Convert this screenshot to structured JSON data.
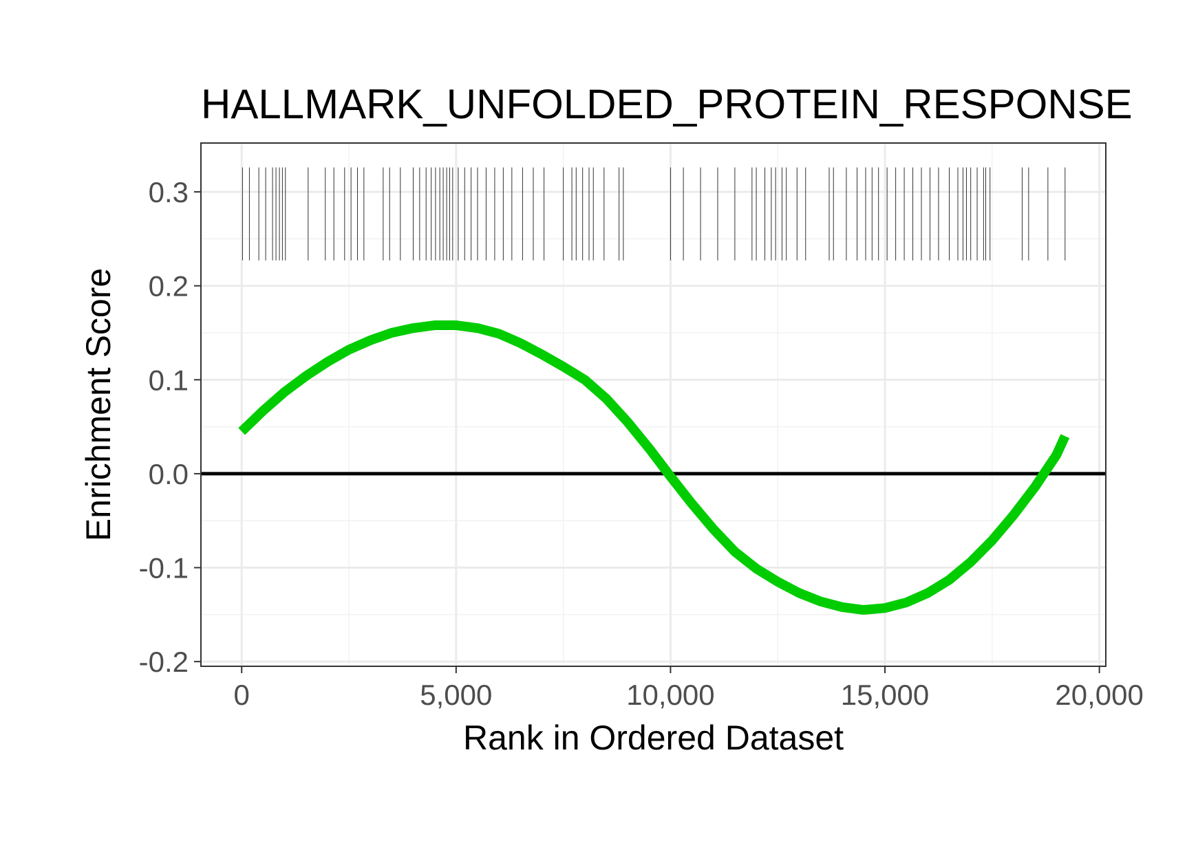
{
  "chart_data": {
    "type": "line",
    "title": "HALLMARK_UNFOLDED_PROTEIN_RESPONSE",
    "xlabel": "Rank in Ordered Dataset",
    "ylabel": "Enrichment Score",
    "xlim": [
      -950,
      20150
    ],
    "ylim": [
      -0.205,
      0.352
    ],
    "x_ticks": [
      0,
      5000,
      10000,
      15000,
      20000
    ],
    "x_tick_labels": [
      "0",
      "5,000",
      "10,000",
      "15,000",
      "20,000"
    ],
    "y_ticks": [
      -0.2,
      -0.1,
      0.0,
      0.1,
      0.2,
      0.3
    ],
    "y_tick_labels": [
      "-0.2",
      "-0.1",
      "0.0",
      "0.1",
      "0.2",
      "0.3"
    ],
    "grid": true,
    "theme": "black-and-white panel",
    "reference_line": {
      "y": 0,
      "color": "#000000"
    },
    "series": [
      {
        "color": "#00cc00",
        "x": [
          0,
          500,
          1000,
          1500,
          2000,
          2500,
          3000,
          3500,
          4000,
          4500,
          5000,
          5500,
          6000,
          6500,
          7000,
          7500,
          8000,
          8500,
          9000,
          9500,
          10000,
          10500,
          11000,
          11500,
          12000,
          12500,
          13000,
          13500,
          14000,
          14500,
          15000,
          15500,
          16000,
          16500,
          17000,
          17500,
          18000,
          18500,
          19000,
          19200
        ],
        "y": [
          0.045,
          0.067,
          0.087,
          0.104,
          0.119,
          0.132,
          0.142,
          0.15,
          0.155,
          0.158,
          0.158,
          0.155,
          0.149,
          0.139,
          0.127,
          0.114,
          0.1,
          0.08,
          0.055,
          0.027,
          -0.003,
          -0.032,
          -0.059,
          -0.083,
          -0.101,
          -0.115,
          -0.127,
          -0.136,
          -0.142,
          -0.145,
          -0.143,
          -0.137,
          -0.127,
          -0.113,
          -0.094,
          -0.071,
          -0.044,
          -0.014,
          0.02,
          0.04
        ]
      }
    ],
    "hit_ranks": [
      20,
      180,
      400,
      560,
      720,
      800,
      880,
      950,
      1020,
      1550,
      1950,
      2150,
      2400,
      2550,
      2700,
      2850,
      3300,
      3450,
      3700,
      4000,
      4150,
      4300,
      4420,
      4520,
      4620,
      4700,
      4780,
      4850,
      4920,
      5050,
      5200,
      5350,
      5500,
      5700,
      5900,
      6100,
      6300,
      6550,
      6800,
      7050,
      7500,
      7700,
      7800,
      7950,
      8100,
      8200,
      8450,
      8800,
      8900,
      10000,
      10300,
      10700,
      11100,
      11500,
      11900,
      12000,
      12200,
      12350,
      12450,
      12600,
      12700,
      12950,
      13150,
      13700,
      13800,
      14100,
      14350,
      14550,
      14700,
      14850,
      15050,
      15250,
      15450,
      15650,
      15850,
      16050,
      16250,
      16500,
      16700,
      16820,
      16900,
      17000,
      17150,
      17300,
      17350,
      17450,
      18200,
      18350,
      18800,
      19200
    ]
  }
}
